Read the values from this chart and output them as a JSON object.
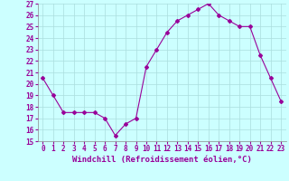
{
  "x": [
    0,
    1,
    2,
    3,
    4,
    5,
    6,
    7,
    8,
    9,
    10,
    11,
    12,
    13,
    14,
    15,
    16,
    17,
    18,
    19,
    20,
    21,
    22,
    23
  ],
  "y": [
    20.5,
    19.0,
    17.5,
    17.5,
    17.5,
    17.5,
    17.0,
    15.5,
    16.5,
    17.0,
    21.5,
    23.0,
    24.5,
    25.5,
    26.0,
    26.5,
    27.0,
    26.0,
    25.5,
    25.0,
    25.0,
    22.5,
    20.5,
    18.5
  ],
  "line_color": "#990099",
  "marker": "D",
  "marker_size": 2.0,
  "line_width": 0.8,
  "xlabel": "Windchill (Refroidissement éolien,°C)",
  "ylim": [
    15,
    27
  ],
  "xlim": [
    -0.5,
    23.5
  ],
  "yticks": [
    15,
    16,
    17,
    18,
    19,
    20,
    21,
    22,
    23,
    24,
    25,
    26,
    27
  ],
  "xticks": [
    0,
    1,
    2,
    3,
    4,
    5,
    6,
    7,
    8,
    9,
    10,
    11,
    12,
    13,
    14,
    15,
    16,
    17,
    18,
    19,
    20,
    21,
    22,
    23
  ],
  "bg_color": "#ccffff",
  "grid_color": "#aadddd",
  "tick_label_size": 5.5,
  "xlabel_size": 6.5,
  "label_color": "#990099"
}
